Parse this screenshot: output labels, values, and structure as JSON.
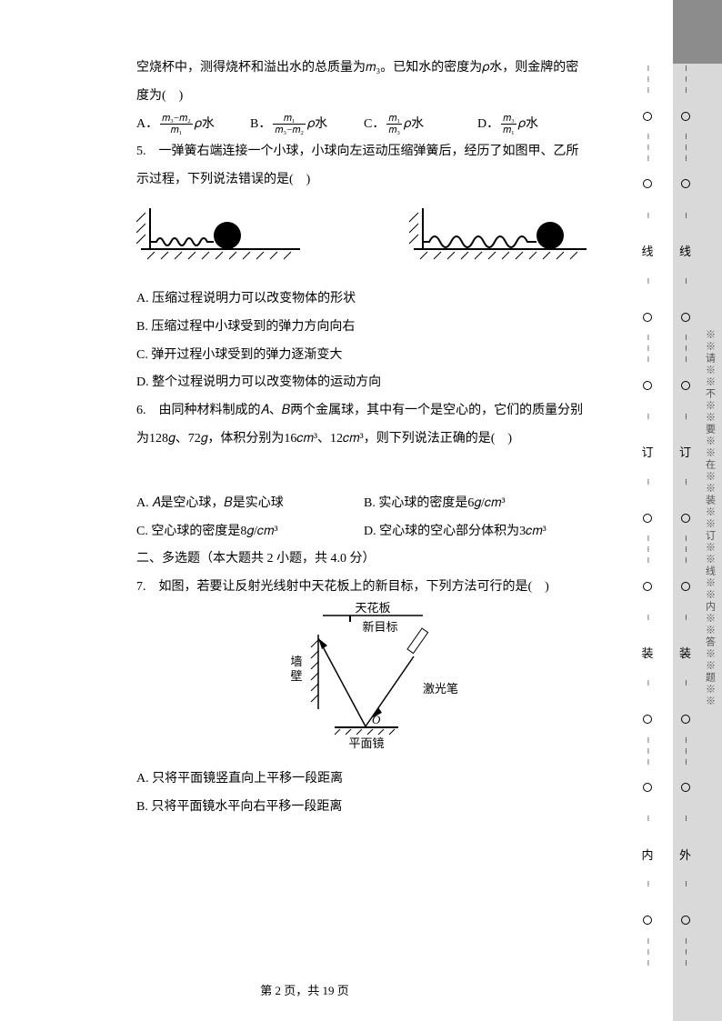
{
  "q4": {
    "intro": "空烧杯中，测得烧杯和溢出水的总质量为𝑚₃。已知水的密度为𝜌水，则金牌的密度为(　)",
    "options": {
      "A": {
        "num": "𝑚₃−𝑚₂",
        "den": "𝑚₁",
        "suffix": "𝜌水"
      },
      "B": {
        "num": "𝑚₁",
        "den": "𝑚₃−𝑚₂",
        "suffix": "𝜌水"
      },
      "C": {
        "num": "𝑚₁",
        "den": "𝑚₃",
        "suffix": "𝜌水"
      },
      "D": {
        "num": "𝑚₃",
        "den": "𝑚₁",
        "suffix": "𝜌水"
      }
    }
  },
  "q5": {
    "text": "5.　一弹簧右端连接一个小球，小球向左运动压缩弹簧后，经历了如图甲、乙所示过程，下列说法错误的是(　)",
    "options": {
      "A": "A. 压缩过程说明力可以改变物体的形状",
      "B": "B. 压缩过程中小球受到的弹力方向向右",
      "C": "C. 弹开过程小球受到的弹力逐渐变大",
      "D": "D. 整个过程说明力可以改变物体的运动方向"
    }
  },
  "q6": {
    "text": "6.　由同种材料制成的𝐴、𝐵两个金属球，其中有一个是空心的，它们的质量分别为128𝑔、72𝑔，体积分别为16𝑐𝑚³、12𝑐𝑚³，则下列说法正确的是(　)",
    "options": {
      "A": "A. 𝐴是空心球，𝐵是实心球",
      "B": "B. 实心球的密度是6𝑔/𝑐𝑚³",
      "C": "C. 空心球的密度是8𝑔/𝑐𝑚³",
      "D": "D. 空心球的空心部分体积为3𝑐𝑚³"
    }
  },
  "section2": "二、多选题（本大题共 2 小题，共 4.0 分）",
  "q7": {
    "text": "7.　如图，若要让反射光线射中天花板上的新目标，下列方法可行的是(　)",
    "labels": {
      "ceiling": "天花板",
      "target": "新目标",
      "wall": "墙壁",
      "laser": "激光笔",
      "mirror": "平面镜",
      "O": "O"
    },
    "options": {
      "A": "A. 只将平面镜竖直向上平移一段距离",
      "B": "B. 只将平面镜水平向右平移一段距离"
    }
  },
  "footer": "第 2 页，共 19 页",
  "strip_chars": {
    "xian": "线",
    "ding": "订",
    "zhuang": "装",
    "nei": "内",
    "wai": "外"
  },
  "strip_text": "※※请※※不※※要※※在※※装※※订※※线※※内※※答※※题※※"
}
